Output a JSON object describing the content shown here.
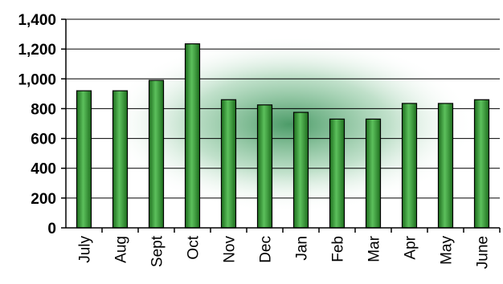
{
  "chart_data": {
    "type": "bar",
    "title": "",
    "xlabel": "",
    "ylabel": "",
    "categories": [
      "July",
      "Aug",
      "Sept",
      "Oct",
      "Nov",
      "Dec",
      "Jan",
      "Feb",
      "Mar",
      "Apr",
      "May",
      "June"
    ],
    "values": [
      920,
      920,
      990,
      1235,
      860,
      825,
      775,
      730,
      730,
      835,
      835,
      860
    ],
    "ylim": [
      0,
      1400
    ],
    "yticks": [
      0,
      200,
      400,
      600,
      800,
      1000,
      1200,
      1400
    ],
    "ytick_labels": [
      "0",
      "200",
      "400",
      "600",
      "800",
      "1,000",
      "1,200",
      "1,400"
    ],
    "grid": true,
    "legend": "none",
    "colors": {
      "bar_dark": "#1e6e1e",
      "bar_mid": "#2f9a36",
      "bar_light": "#5cc05c",
      "plot_glow": "#2d8a4e"
    }
  }
}
